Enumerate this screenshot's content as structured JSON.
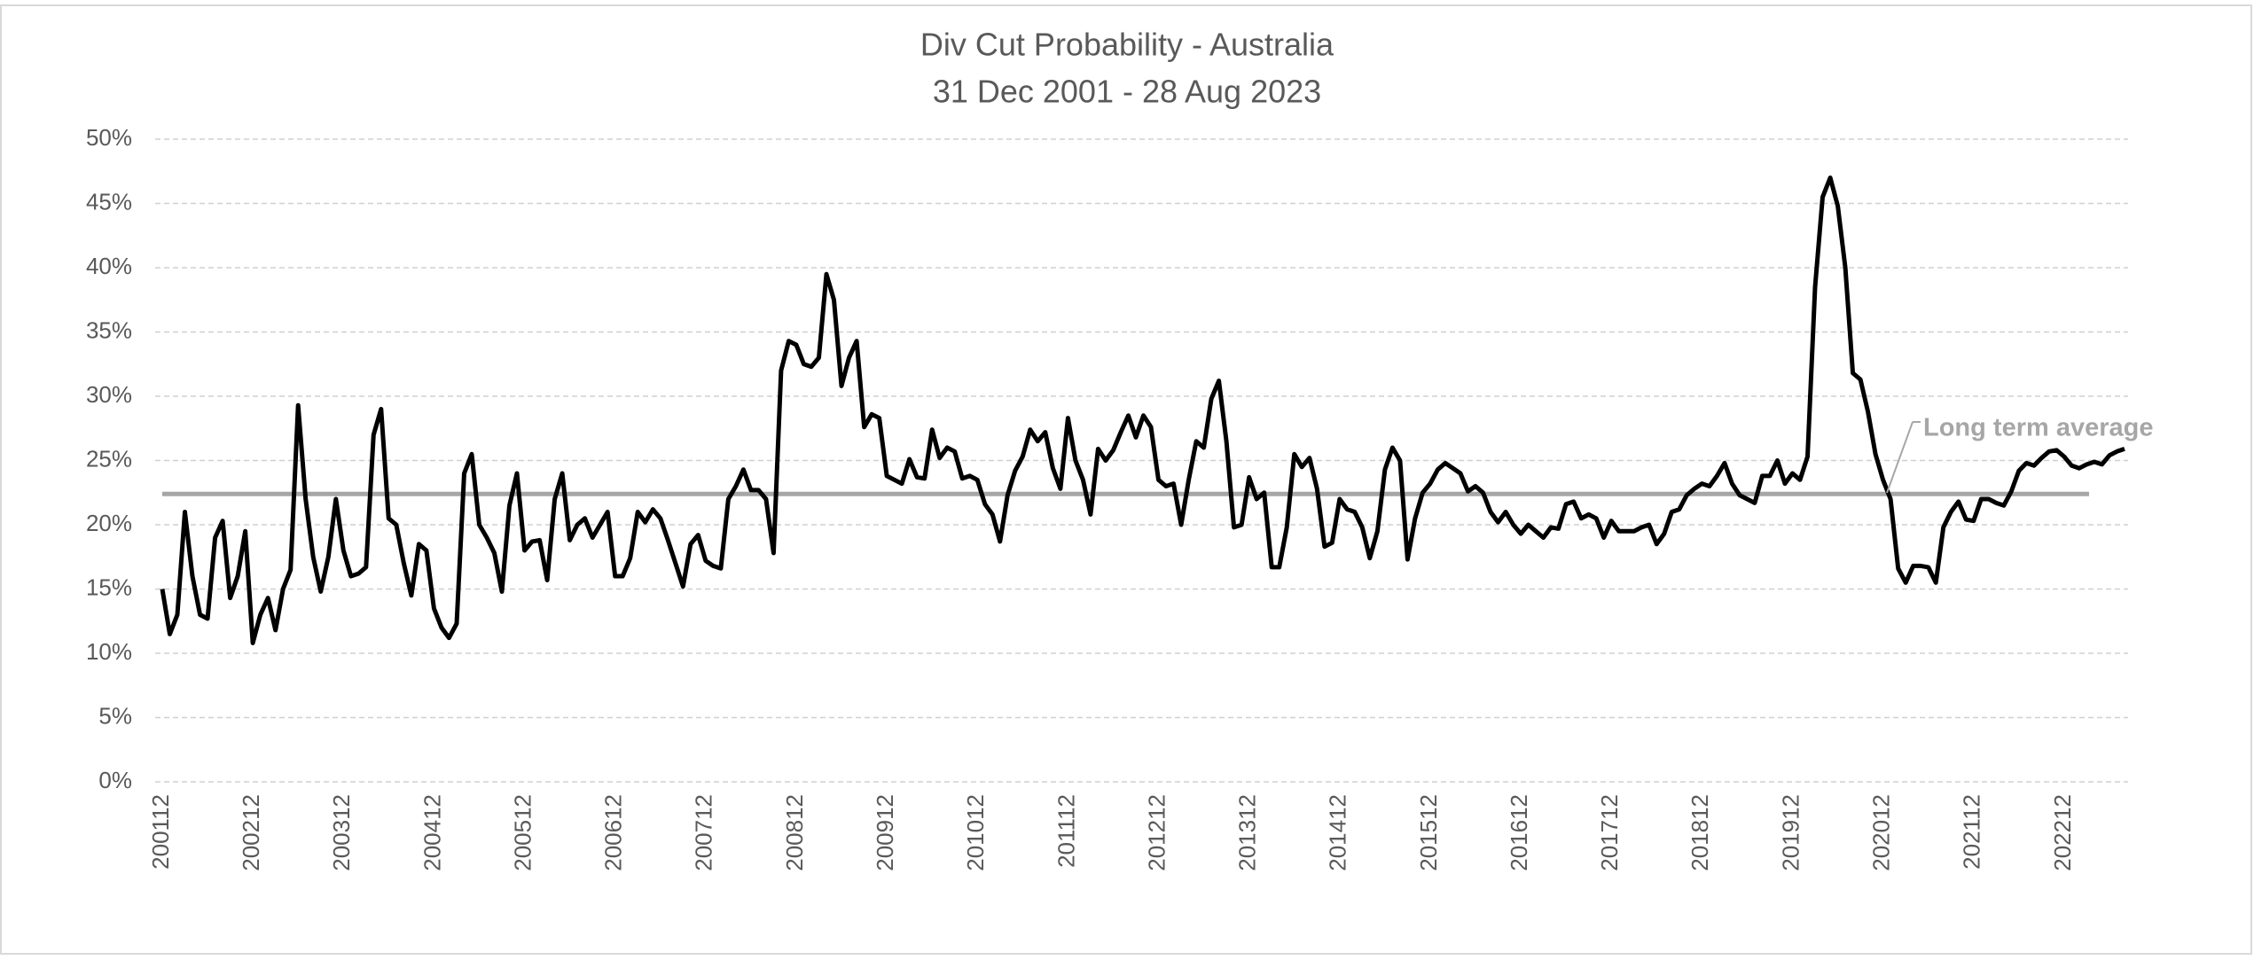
{
  "chart_data": {
    "type": "line",
    "title": "Div Cut Probability - Australia",
    "subtitle": "31 Dec 2001 - 28 Aug 2023",
    "color": "#000000",
    "grid": true,
    "categories": [
      "200112",
      null,
      null,
      null,
      null,
      null,
      null,
      null,
      null,
      null,
      null,
      null,
      "200212",
      null,
      null,
      null,
      null,
      null,
      null,
      null,
      null,
      null,
      null,
      null,
      "200312",
      null,
      null,
      null,
      null,
      null,
      null,
      null,
      null,
      null,
      null,
      null,
      "200412",
      null,
      null,
      null,
      null,
      null,
      null,
      null,
      null,
      null,
      null,
      null,
      "200512",
      null,
      null,
      null,
      null,
      null,
      null,
      null,
      null,
      null,
      null,
      null,
      "200612",
      null,
      null,
      null,
      null,
      null,
      null,
      null,
      null,
      null,
      null,
      null,
      "200712",
      null,
      null,
      null,
      null,
      null,
      null,
      null,
      null,
      null,
      null,
      null,
      "200812",
      null,
      null,
      null,
      null,
      null,
      null,
      null,
      null,
      null,
      null,
      null,
      "200912",
      null,
      null,
      null,
      null,
      null,
      null,
      null,
      null,
      null,
      null,
      null,
      "201012",
      null,
      null,
      null,
      null,
      null,
      null,
      null,
      null,
      null,
      null,
      null,
      "201112",
      null,
      null,
      null,
      null,
      null,
      null,
      null,
      null,
      null,
      null,
      null,
      "201212",
      null,
      null,
      null,
      null,
      null,
      null,
      null,
      null,
      null,
      null,
      null,
      "201312",
      null,
      null,
      null,
      null,
      null,
      null,
      null,
      null,
      null,
      null,
      null,
      "201412",
      null,
      null,
      null,
      null,
      null,
      null,
      null,
      null,
      null,
      null,
      null,
      "201512",
      null,
      null,
      null,
      null,
      null,
      null,
      null,
      null,
      null,
      null,
      null,
      "201612",
      null,
      null,
      null,
      null,
      null,
      null,
      null,
      null,
      null,
      null,
      null,
      "201712",
      null,
      null,
      null,
      null,
      null,
      null,
      null,
      null,
      null,
      null,
      null,
      "201812",
      null,
      null,
      null,
      null,
      null,
      null,
      null,
      null,
      null,
      null,
      null,
      "201912",
      null,
      null,
      null,
      null,
      null,
      null,
      null,
      null,
      null,
      null,
      null,
      "202012",
      null,
      null,
      null,
      null,
      null,
      null,
      null,
      null,
      null,
      null,
      null,
      "202112",
      null,
      null,
      null,
      null,
      null,
      null,
      null,
      null,
      null,
      null,
      null,
      "202212",
      null,
      null,
      null,
      null,
      null,
      null,
      null,
      null
    ],
    "values": [
      15,
      11.5,
      13,
      21,
      16,
      13,
      12.7,
      19,
      20.3,
      14.3,
      16,
      19.5,
      10.8,
      13,
      14.3,
      11.8,
      15,
      16.5,
      29.3,
      22,
      17.5,
      14.8,
      17.5,
      22,
      18,
      16,
      16.2,
      16.7,
      27,
      29,
      20.5,
      20,
      17,
      14.5,
      18.5,
      18,
      13.5,
      12,
      11.2,
      12.3,
      24,
      25.5,
      20,
      19,
      17.8,
      14.8,
      21.5,
      24,
      18,
      18.7,
      18.8,
      15.7,
      22,
      24,
      18.8,
      20,
      20.5,
      19,
      20,
      21,
      16,
      16,
      17.4,
      21,
      20.2,
      21.2,
      20.5,
      18.8,
      17,
      15.2,
      18.5,
      19.2,
      17.2,
      16.8,
      16.6,
      22,
      23,
      24.3,
      22.7,
      22.7,
      22,
      17.8,
      32,
      34.3,
      34,
      32.5,
      32.3,
      33,
      39.5,
      37.5,
      30.8,
      33,
      34.3,
      27.6,
      28.6,
      28.3,
      23.8,
      23.5,
      23.2,
      25.1,
      23.7,
      23.6,
      27.4,
      25.2,
      26,
      25.7,
      23.6,
      23.8,
      23.5,
      21.6,
      20.8,
      18.7,
      22.3,
      24.2,
      25.3,
      27.4,
      26.5,
      27.2,
      24.4,
      22.8,
      28.3,
      25,
      23.5,
      20.8,
      25.9,
      25,
      25.8,
      27.2,
      28.5,
      26.8,
      28.5,
      27.6,
      23.5,
      23,
      23.2,
      20,
      23.5,
      26.5,
      26,
      29.8,
      31.2,
      26.5,
      19.8,
      20,
      23.7,
      22,
      22.5,
      16.7,
      16.7,
      19.8,
      25.5,
      24.5,
      25.2,
      22.8,
      18.3,
      18.6,
      22,
      21.2,
      21,
      19.8,
      17.4,
      19.5,
      24.3,
      26,
      25,
      17.3,
      20.5,
      22.5,
      23.2,
      24.3,
      24.8,
      24.4,
      24,
      22.6,
      23,
      22.5,
      21,
      20.2,
      21,
      20,
      19.3,
      20,
      19.5,
      19,
      19.8,
      19.7,
      21.6,
      21.8,
      20.5,
      20.8,
      20.5,
      19,
      20.3,
      19.5,
      19.5,
      19.5,
      19.8,
      20,
      18.5,
      19.3,
      21,
      21.2,
      22.3,
      22.8,
      23.2,
      23,
      23.8,
      24.8,
      23.2,
      22.3,
      22,
      21.7,
      23.8,
      23.8,
      25,
      23.2,
      24,
      23.5,
      25.3,
      38.5,
      45.5,
      47,
      44.8,
      40,
      31.8,
      31.3,
      28.8,
      25.5,
      23.5,
      22,
      16.6,
      15.5,
      16.8,
      16.8,
      16.7,
      15.5,
      19.8,
      21,
      21.8,
      20.4,
      20.3,
      22,
      22,
      21.7,
      21.5,
      22.6,
      24.2,
      24.8,
      24.6,
      25.2,
      25.7,
      25.8,
      25.3,
      24.6,
      24.4,
      24.7,
      24.9,
      24.7,
      25.4,
      25.7,
      25.9
    ],
    "average": {
      "label": "Long term average",
      "value": 22.4,
      "color": "#a6a6a6"
    },
    "ylim": [
      0,
      50
    ],
    "yticks": [
      {
        "value": 0,
        "label": "0%"
      },
      {
        "value": 5,
        "label": "5%"
      },
      {
        "value": 10,
        "label": "10%"
      },
      {
        "value": 15,
        "label": "15%"
      },
      {
        "value": 20,
        "label": "20%"
      },
      {
        "value": 25,
        "label": "25%"
      },
      {
        "value": 30,
        "label": "30%"
      },
      {
        "value": 35,
        "label": "35%"
      },
      {
        "value": 40,
        "label": "40%"
      },
      {
        "value": 45,
        "label": "45%"
      },
      {
        "value": 50,
        "label": "50%"
      }
    ]
  }
}
